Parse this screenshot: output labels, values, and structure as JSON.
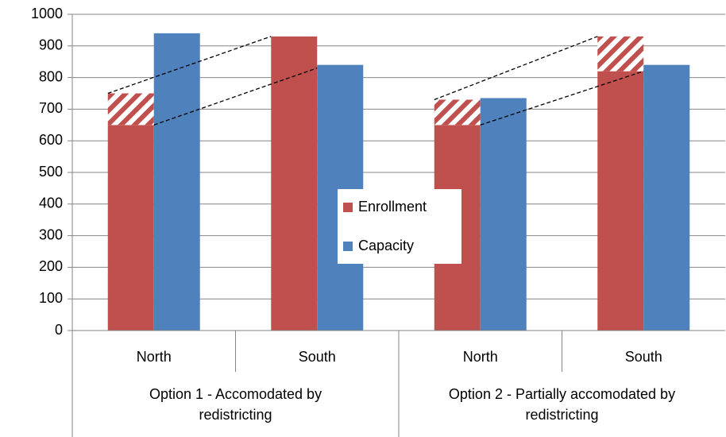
{
  "chart_data": {
    "type": "bar",
    "categories": [
      "North",
      "South",
      "North",
      "South"
    ],
    "groups": [
      [
        "Option 1 - Accomodated by",
        "redistricting"
      ],
      [
        "Option 2 - Partially accomodated by",
        "redistricting"
      ]
    ],
    "series": [
      {
        "name": "Enrollment",
        "color": "#c0504d",
        "values": [
          650,
          930,
          650,
          820
        ]
      },
      {
        "name": "Capacity",
        "color": "#4f81bd",
        "values": [
          940,
          840,
          735,
          840
        ]
      }
    ],
    "hatched": {
      "color": "#c0504d",
      "values": [
        100,
        null,
        80,
        110
      ]
    },
    "ylim": [
      0,
      1000
    ],
    "yticks": [
      0,
      100,
      200,
      300,
      400,
      500,
      600,
      700,
      800,
      900,
      1000
    ],
    "grid": true,
    "legend": "center"
  }
}
